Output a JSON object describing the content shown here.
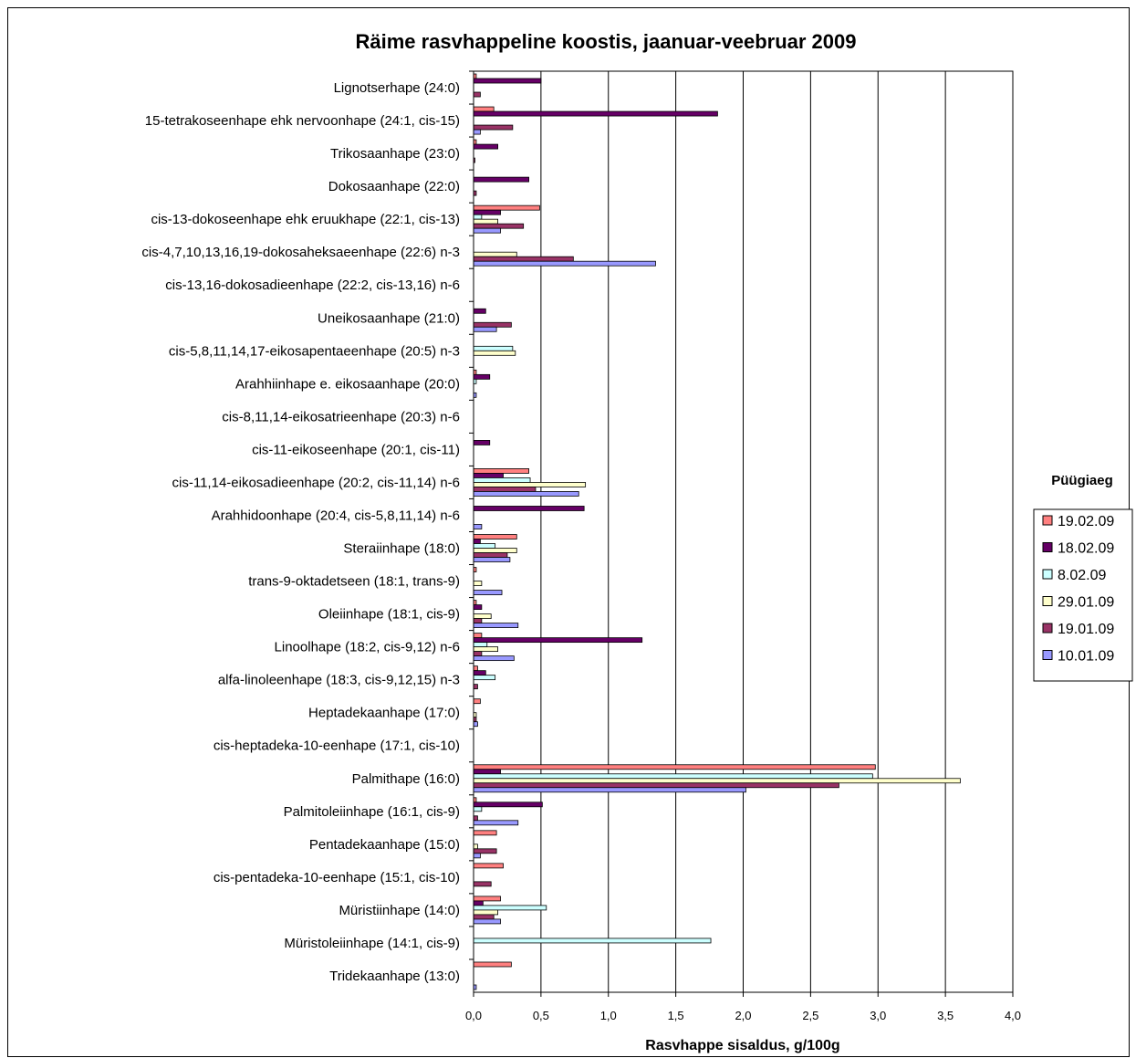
{
  "chart_data": {
    "type": "bar",
    "orientation": "horizontal",
    "title": "Räime rasvhappeline koostis, jaanuar-veebruar 2009",
    "xlabel": "Rasvhappe sisaldus, g/100g",
    "ylabel": "",
    "xlim": [
      0,
      4.0
    ],
    "x_ticks": [
      "0,0",
      "0,5",
      "1,0",
      "1,5",
      "2,0",
      "2,5",
      "3,0",
      "3,5",
      "4,0"
    ],
    "grid": "vertical",
    "legend_title": "Püügiaeg",
    "legend_position": "right",
    "categories": [
      "Lignotserhape (24:0)",
      "15-tetrakoseenhape ehk nervoonhape (24:1, cis-15)",
      "Trikosaanhape (23:0)",
      "Dokosaanhape (22:0)",
      "cis-13-dokoseenhape ehk eruukhape (22:1, cis-13)",
      "cis-4,7,10,13,16,19-dokosaheksaeenhape (22:6) n-3",
      "cis-13,16-dokosadieenhape (22:2, cis-13,16) n-6",
      "Uneikosaanhape (21:0)",
      "cis-5,8,11,14,17-eikosapentaeenhape (20:5) n-3",
      "Arahhiinhape e. eikosaanhape (20:0)",
      "cis-8,11,14-eikosatrieenhape (20:3) n-6",
      "cis-11-eikoseenhape (20:1, cis-11)",
      "cis-11,14-eikosadieenhape (20:2, cis-11,14) n-6",
      "Arahhidoonhape (20:4, cis-5,8,11,14) n-6",
      "Steraiinhape (18:0)",
      "trans-9-oktadetseen (18:1, trans-9)",
      "Oleiinhape (18:1, cis-9)",
      "Linoolhape (18:2, cis-9,12) n-6",
      "alfa-linoleenhape (18:3, cis-9,12,15) n-3",
      "Heptadekaanhape (17:0)",
      "cis-heptadeka-10-eenhape (17:1, cis-10)",
      "Palmithape (16:0)",
      "Palmitoleiinhape (16:1, cis-9)",
      "Pentadekaanhape (15:0)",
      "cis-pentadeka-10-eenhape (15:1, cis-10)",
      "Müristiinhape (14:0)",
      "Müristoleiinhape (14:1, cis-9)",
      "Tridekaanhape (13:0)"
    ],
    "series": [
      {
        "name": "19.02.09",
        "color": "#ff8080",
        "values": [
          0.02,
          0.15,
          0.02,
          0,
          0.49,
          0,
          0,
          0,
          0,
          0.02,
          0,
          0,
          0.41,
          0,
          0.32,
          0.02,
          0.02,
          0.06,
          0.03,
          0.05,
          0,
          2.98,
          0.02,
          0.17,
          0.22,
          0.2,
          0,
          0.28
        ]
      },
      {
        "name": "18.02.09",
        "color": "#660066",
        "values": [
          0.5,
          1.81,
          0.18,
          0.41,
          0.2,
          0,
          0,
          0.09,
          0,
          0.12,
          0,
          0.12,
          0.22,
          0.82,
          0.05,
          0,
          0.06,
          1.25,
          0.09,
          0,
          0,
          0.2,
          0.51,
          0,
          0,
          0.07,
          0,
          0
        ]
      },
      {
        "name": "8.02.09",
        "color": "#ccffff",
        "values": [
          0,
          0,
          0,
          0,
          0.06,
          0,
          0,
          0,
          0.29,
          0.02,
          0,
          0,
          0.42,
          0,
          0.16,
          0,
          0,
          0.1,
          0.16,
          0,
          0,
          2.96,
          0.06,
          0,
          0,
          0.54,
          1.76,
          0
        ]
      },
      {
        "name": "29.01.09",
        "color": "#ffffcc",
        "values": [
          0,
          0,
          0,
          0,
          0.18,
          0.32,
          0,
          0,
          0.31,
          0,
          0,
          0,
          0.83,
          0,
          0.32,
          0.06,
          0.13,
          0.18,
          0,
          0.02,
          0,
          3.61,
          0,
          0.03,
          0,
          0.18,
          0,
          0
        ]
      },
      {
        "name": "19.01.09",
        "color": "#993366",
        "values": [
          0.05,
          0.29,
          0.01,
          0.02,
          0.37,
          0.74,
          0,
          0.28,
          0,
          0,
          0,
          0,
          0.46,
          0,
          0.25,
          0,
          0.06,
          0.06,
          0.03,
          0.02,
          0,
          2.71,
          0.03,
          0.17,
          0.13,
          0.15,
          0,
          0
        ]
      },
      {
        "name": "10.01.09",
        "color": "#9999ff",
        "values": [
          0,
          0.05,
          0,
          0,
          0.2,
          1.35,
          0,
          0.17,
          0,
          0.02,
          0,
          0,
          0.78,
          0.06,
          0.27,
          0.21,
          0.33,
          0.3,
          0,
          0.03,
          0,
          2.02,
          0.33,
          0.05,
          0,
          0.2,
          0,
          0.02
        ]
      }
    ]
  }
}
